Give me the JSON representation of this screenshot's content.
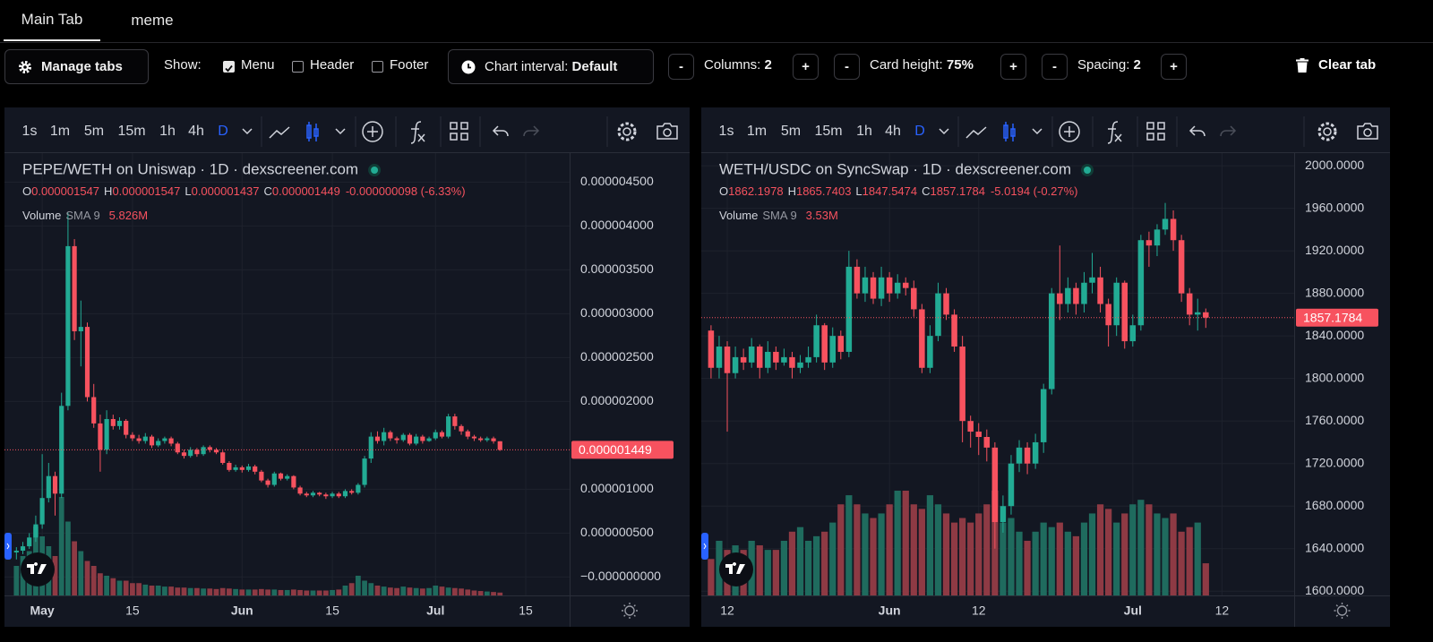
{
  "tabs": [
    {
      "label": "Main Tab",
      "active": true
    },
    {
      "label": "meme",
      "active": false
    }
  ],
  "toolbar": {
    "manage_tabs": "Manage tabs",
    "show": "Show:",
    "options": [
      {
        "label": "Menu",
        "checked": true
      },
      {
        "label": "Header",
        "checked": false
      },
      {
        "label": "Footer",
        "checked": false
      }
    ],
    "chart_interval": {
      "label": "Chart interval:",
      "value": "Default"
    },
    "minus": "-",
    "plus": "+",
    "steppers": [
      {
        "label": "Columns:",
        "value": "2"
      },
      {
        "label": "Card height:",
        "value": "75%"
      },
      {
        "label": "Spacing:",
        "value": "2"
      }
    ],
    "clear_tab": "Clear tab"
  },
  "charts": [
    {
      "type": "candlestick",
      "title": "PEPE/WETH on Uniswap · 1D · dexscreener.com",
      "intervals": [
        "1s",
        "1m",
        "5m",
        "15m",
        "1h",
        "4h",
        "D"
      ],
      "active_interval": "D",
      "ohlc": [
        {
          "label": "O",
          "value": "0.000001547"
        },
        {
          "label": "H",
          "value": "0.000001547"
        },
        {
          "label": "L",
          "value": "0.000001437"
        },
        {
          "label": "C",
          "value": "0.000001449"
        }
      ],
      "change": "-0.000000098 (-6.33%)",
      "volume_label": "Volume",
      "sma_label": "SMA 9",
      "volume_value": "5.826M",
      "up_color": "#22ab94",
      "down_color": "#f7525f",
      "volume_up_color": "#1f6b5e",
      "volume_down_color": "#8e3a44",
      "grid": true,
      "last_price": {
        "value": 1.449e-06,
        "label": "0.000001449"
      },
      "ylim": [
        -2.1e-07,
        4.82e-06
      ],
      "yticks": [
        {
          "value": 4.5e-06,
          "label": "0.000004500"
        },
        {
          "value": 4e-06,
          "label": "0.000004000"
        },
        {
          "value": 3.5e-06,
          "label": "0.000003500"
        },
        {
          "value": 3e-06,
          "label": "0.000003000"
        },
        {
          "value": 2.5e-06,
          "label": "0.000002500"
        },
        {
          "value": 2e-06,
          "label": "0.000002000"
        },
        {
          "value": 1e-06,
          "label": "0.000001000"
        },
        {
          "value": 5e-07,
          "label": "0.000000500"
        },
        {
          "value": 0,
          "label": "−0.000000000"
        }
      ],
      "xlim": [
        -4.6,
        81.8
      ],
      "xticks": [
        {
          "value": 0,
          "label": "May"
        },
        {
          "value": 14,
          "label": "15"
        },
        {
          "value": 31,
          "label": "Jun"
        },
        {
          "value": 45,
          "label": "15"
        },
        {
          "value": 61,
          "label": "Jul"
        },
        {
          "value": 75,
          "label": "15"
        }
      ],
      "x": [
        -4,
        -3,
        -2,
        -1,
        0,
        1,
        2,
        3,
        4,
        5,
        6,
        7,
        8,
        9,
        10,
        11,
        12,
        13,
        14,
        15,
        16,
        17,
        18,
        19,
        20,
        21,
        22,
        23,
        24,
        25,
        26,
        27,
        28,
        29,
        30,
        31,
        32,
        33,
        34,
        35,
        36,
        37,
        38,
        39,
        40,
        41,
        42,
        43,
        44,
        45,
        46,
        47,
        48,
        49,
        50,
        51,
        52,
        53,
        54,
        55,
        56,
        57,
        58,
        59,
        60,
        61,
        62,
        63,
        64,
        65,
        66,
        67,
        68,
        69,
        70,
        71
      ],
      "open": [
        2.8e-07,
        3e-07,
        3.5e-07,
        4.5e-07,
        6e-07,
        9e-07,
        1.15e-06,
        9.5e-07,
        1.95e-06,
        3.77e-06,
        2.8e-06,
        2.85e-06,
        2.05e-06,
        1.75e-06,
        1.45e-06,
        1.8e-06,
        1.72e-06,
        1.78e-06,
        1.62e-06,
        1.58e-06,
        1.55e-06,
        1.6e-06,
        1.5e-06,
        1.55e-06,
        1.58e-06,
        1.52e-06,
        1.42e-06,
        1.38e-06,
        1.45e-06,
        1.4e-06,
        1.48e-06,
        1.45e-06,
        1.42e-06,
        1.3e-06,
        1.22e-06,
        1.25e-06,
        1.22e-06,
        1.26e-06,
        1.2e-06,
        1.1e-06,
        1.05e-06,
        1.18e-06,
        1.12e-06,
        1.15e-06,
        1.02e-06,
        9.5e-07,
        9.3e-07,
        9.6e-07,
        9.4e-07,
        9.2e-07,
        9.5e-07,
        9.2e-07,
        9.8e-07,
        9.6e-07,
        1.05e-06,
        1.35e-06,
        1.6e-06,
        1.55e-06,
        1.65e-06,
        1.58e-06,
        1.56e-06,
        1.62e-06,
        1.52e-06,
        1.6e-06,
        1.55e-06,
        1.58e-06,
        1.65e-06,
        1.6e-06,
        1.83e-06,
        1.72e-06,
        1.66e-06,
        1.6e-06,
        1.58e-06,
        1.56e-06,
        1.58e-06,
        1.547e-06
      ],
      "high": [
        3.4e-07,
        4e-07,
        5e-07,
        7e-07,
        1.4e-06,
        1.3e-06,
        1.2e-06,
        2.1e-06,
        4.15e-06,
        3.85e-06,
        3.15e-06,
        2.9e-06,
        2.2e-06,
        1.85e-06,
        1.9e-06,
        1.85e-06,
        1.82e-06,
        1.8e-06,
        1.65e-06,
        1.62e-06,
        1.64e-06,
        1.62e-06,
        1.58e-06,
        1.6e-06,
        1.6e-06,
        1.54e-06,
        1.45e-06,
        1.48e-06,
        1.47e-06,
        1.5e-06,
        1.5e-06,
        1.47e-06,
        1.44e-06,
        1.32e-06,
        1.28e-06,
        1.27e-06,
        1.29e-06,
        1.28e-06,
        1.22e-06,
        1.12e-06,
        1.2e-06,
        1.19e-06,
        1.17e-06,
        1.16e-06,
        1.04e-06,
        9.7e-07,
        9.8e-07,
        9.7e-07,
        9.6e-07,
        9.7e-07,
        9.7e-07,
        1e-06,
        1e-06,
        1.07e-06,
        1.38e-06,
        1.65e-06,
        1.66e-06,
        1.7e-06,
        1.67e-06,
        1.6e-06,
        1.64e-06,
        1.64e-06,
        1.63e-06,
        1.62e-06,
        1.6e-06,
        1.68e-06,
        1.67e-06,
        1.86e-06,
        1.86e-06,
        1.74e-06,
        1.68e-06,
        1.62e-06,
        1.6e-06,
        1.6e-06,
        1.6e-06,
        1.547e-06
      ],
      "low": [
        2e-07,
        2.6e-07,
        3.2e-07,
        4e-07,
        5.5e-07,
        8.5e-07,
        7e-07,
        9e-07,
        1.9e-06,
        2.7e-06,
        2.4e-06,
        2e-06,
        1.7e-06,
        1.2e-06,
        1.4e-06,
        1.68e-06,
        1.68e-06,
        1.58e-06,
        1.55e-06,
        1.52e-06,
        1.52e-06,
        1.47e-06,
        1.48e-06,
        1.52e-06,
        1.49e-06,
        1.4e-06,
        1.35e-06,
        1.36e-06,
        1.37e-06,
        1.38e-06,
        1.42e-06,
        1.4e-06,
        1.28e-06,
        1.2e-06,
        1.2e-06,
        1.19e-06,
        1.2e-06,
        1.17e-06,
        1.08e-06,
        1.02e-06,
        1.03e-06,
        1.1e-06,
        1.1e-06,
        1e-06,
        9.3e-07,
        9.1e-07,
        9.1e-07,
        9.2e-07,
        8.9e-07,
        9e-07,
        9e-07,
        9e-07,
        9.4e-07,
        9.4e-07,
        1.02e-06,
        1.3e-06,
        1.52e-06,
        1.5e-06,
        1.55e-06,
        1.52e-06,
        1.54e-06,
        1.5e-06,
        1.5e-06,
        1.52e-06,
        1.54e-06,
        1.56e-06,
        1.58e-06,
        1.58e-06,
        1.68e-06,
        1.62e-06,
        1.57e-06,
        1.55e-06,
        1.54e-06,
        1.54e-06,
        1.52e-06,
        1.437e-06
      ],
      "close": [
        3e-07,
        3.5e-07,
        4.5e-07,
        6e-07,
        9e-07,
        1.15e-06,
        9.5e-07,
        1.95e-06,
        3.77e-06,
        2.8e-06,
        2.85e-06,
        2.05e-06,
        1.75e-06,
        1.45e-06,
        1.8e-06,
        1.72e-06,
        1.78e-06,
        1.62e-06,
        1.58e-06,
        1.55e-06,
        1.6e-06,
        1.5e-06,
        1.55e-06,
        1.58e-06,
        1.52e-06,
        1.42e-06,
        1.38e-06,
        1.45e-06,
        1.4e-06,
        1.48e-06,
        1.45e-06,
        1.42e-06,
        1.3e-06,
        1.22e-06,
        1.25e-06,
        1.22e-06,
        1.26e-06,
        1.2e-06,
        1.1e-06,
        1.05e-06,
        1.18e-06,
        1.12e-06,
        1.15e-06,
        1.02e-06,
        9.5e-07,
        9.3e-07,
        9.6e-07,
        9.4e-07,
        9.2e-07,
        9.5e-07,
        9.2e-07,
        9.8e-07,
        9.6e-07,
        1.05e-06,
        1.35e-06,
        1.6e-06,
        1.55e-06,
        1.65e-06,
        1.58e-06,
        1.56e-06,
        1.62e-06,
        1.52e-06,
        1.6e-06,
        1.55e-06,
        1.58e-06,
        1.65e-06,
        1.6e-06,
        1.83e-06,
        1.72e-06,
        1.66e-06,
        1.6e-06,
        1.58e-06,
        1.56e-06,
        1.58e-06,
        1.547e-06,
        1.449e-06
      ],
      "volume": [
        60,
        80,
        90,
        140,
        120,
        100,
        80,
        200,
        150,
        110,
        90,
        70,
        60,
        45,
        40,
        35,
        30,
        30,
        25,
        25,
        22,
        20,
        20,
        18,
        18,
        16,
        16,
        15,
        15,
        14,
        14,
        13,
        15,
        14,
        13,
        12,
        12,
        12,
        13,
        12,
        12,
        11,
        11,
        12,
        11,
        10,
        10,
        10,
        10,
        11,
        12,
        20,
        25,
        40,
        30,
        25,
        20,
        18,
        16,
        15,
        18,
        16,
        15,
        14,
        15,
        20,
        18,
        16,
        15,
        14,
        12,
        10,
        9,
        8,
        7,
        5.826
      ]
    },
    {
      "type": "candlestick",
      "title": "WETH/USDC on SyncSwap · 1D · dexscreener.com",
      "intervals": [
        "1s",
        "1m",
        "5m",
        "15m",
        "1h",
        "4h",
        "D"
      ],
      "active_interval": "D",
      "ohlc": [
        {
          "label": "O",
          "value": "1862.1978"
        },
        {
          "label": "H",
          "value": "1865.7403"
        },
        {
          "label": "L",
          "value": "1847.5474"
        },
        {
          "label": "C",
          "value": "1857.1784"
        }
      ],
      "change": "-5.0194 (-0.27%)",
      "volume_label": "Volume",
      "sma_label": "SMA 9",
      "volume_value": "3.53M",
      "up_color": "#22ab94",
      "down_color": "#f7525f",
      "volume_up_color": "#1f6b5e",
      "volume_down_color": "#8e3a44",
      "grid": true,
      "last_price": {
        "value": 1857.1784,
        "label": "1857.1784"
      },
      "ylim": [
        1596,
        2011
      ],
      "yticks": [
        {
          "value": 2000,
          "label": "2000.0000"
        },
        {
          "value": 1960,
          "label": "1960.0000"
        },
        {
          "value": 1920,
          "label": "1920.0000"
        },
        {
          "value": 1880,
          "label": "1880.0000"
        },
        {
          "value": 1840,
          "label": "1840.0000"
        },
        {
          "value": 1800,
          "label": "1800.0000"
        },
        {
          "value": 1760,
          "label": "1760.0000"
        },
        {
          "value": 1720,
          "label": "1720.0000"
        },
        {
          "value": 1680,
          "label": "1680.0000"
        },
        {
          "value": 1640,
          "label": "1640.0000"
        },
        {
          "value": 1600,
          "label": "1600.0000"
        }
      ],
      "xlim": [
        -22.1,
        49.9
      ],
      "xticks": [
        {
          "value": -20,
          "label": "12"
        },
        {
          "value": 0,
          "label": "Jun"
        },
        {
          "value": 11,
          "label": "12"
        },
        {
          "value": 30,
          "label": "Jul"
        },
        {
          "value": 41,
          "label": "12"
        }
      ],
      "x": [
        -22,
        -21,
        -20,
        -19,
        -18,
        -17,
        -16,
        -15,
        -14,
        -13,
        -12,
        -11,
        -10,
        -9,
        -8,
        -7,
        -6,
        -5,
        -4,
        -3,
        -2,
        -1,
        0,
        1,
        2,
        3,
        4,
        5,
        6,
        7,
        8,
        9,
        10,
        11,
        12,
        13,
        14,
        15,
        16,
        17,
        18,
        19,
        20,
        21,
        22,
        23,
        24,
        25,
        26,
        27,
        28,
        29,
        30,
        31,
        32,
        33,
        34,
        35,
        36,
        37,
        38,
        39
      ],
      "open": [
        1845,
        1810,
        1830,
        1805,
        1820,
        1815,
        1830,
        1810,
        1825,
        1815,
        1820,
        1810,
        1815,
        1820,
        1850,
        1815,
        1840,
        1825,
        1905,
        1880,
        1895,
        1875,
        1895,
        1880,
        1890,
        1885,
        1865,
        1810,
        1840,
        1880,
        1860,
        1830,
        1760,
        1750,
        1745,
        1735,
        1665,
        1680,
        1720,
        1735,
        1720,
        1740,
        1790,
        1880,
        1870,
        1885,
        1870,
        1890,
        1895,
        1870,
        1850,
        1890,
        1835,
        1850,
        1930,
        1925,
        1940,
        1950,
        1930,
        1880,
        1860,
        1862.1978
      ],
      "high": [
        1850,
        1840,
        1835,
        1830,
        1828,
        1838,
        1832,
        1835,
        1830,
        1828,
        1825,
        1822,
        1830,
        1860,
        1852,
        1848,
        1845,
        1920,
        1912,
        1905,
        1900,
        1905,
        1900,
        1898,
        1895,
        1892,
        1870,
        1850,
        1890,
        1885,
        1865,
        1840,
        1765,
        1758,
        1752,
        1740,
        1690,
        1728,
        1742,
        1740,
        1748,
        1795,
        1885,
        1925,
        1895,
        1890,
        1900,
        1918,
        1905,
        1875,
        1895,
        1892,
        1860,
        1935,
        1938,
        1945,
        1965,
        1958,
        1935,
        1885,
        1875,
        1865.7403
      ],
      "low": [
        1800,
        1800,
        1750,
        1800,
        1808,
        1810,
        1800,
        1805,
        1808,
        1812,
        1800,
        1805,
        1810,
        1815,
        1808,
        1810,
        1818,
        1820,
        1875,
        1872,
        1870,
        1868,
        1872,
        1875,
        1878,
        1858,
        1805,
        1805,
        1835,
        1855,
        1825,
        1740,
        1735,
        1728,
        1722,
        1640,
        1655,
        1672,
        1712,
        1710,
        1715,
        1730,
        1785,
        1855,
        1862,
        1860,
        1862,
        1880,
        1862,
        1830,
        1840,
        1828,
        1830,
        1845,
        1905,
        1915,
        1935,
        1920,
        1872,
        1850,
        1845,
        1847.5474
      ],
      "close": [
        1810,
        1830,
        1805,
        1820,
        1815,
        1830,
        1810,
        1825,
        1815,
        1820,
        1810,
        1815,
        1820,
        1850,
        1815,
        1840,
        1825,
        1905,
        1880,
        1895,
        1875,
        1895,
        1880,
        1890,
        1885,
        1865,
        1810,
        1840,
        1880,
        1860,
        1830,
        1760,
        1750,
        1745,
        1735,
        1665,
        1680,
        1720,
        1735,
        1720,
        1740,
        1790,
        1880,
        1870,
        1885,
        1870,
        1890,
        1895,
        1870,
        1850,
        1890,
        1835,
        1850,
        1930,
        1925,
        1940,
        1950,
        1930,
        1880,
        1860,
        1862.1978,
        1857.1784
      ],
      "volume": [
        4,
        6,
        5,
        5.5,
        5,
        6,
        5.5,
        5,
        5,
        6,
        7,
        7.5,
        6,
        6.5,
        7,
        8,
        10,
        11,
        10,
        9,
        8.5,
        9,
        10,
        11.5,
        11.5,
        10,
        9.5,
        11,
        10,
        9,
        8,
        8.5,
        8,
        9,
        10,
        11.5,
        8,
        8.5,
        7,
        6,
        7,
        8,
        7.5,
        8,
        7,
        6.5,
        8,
        9,
        10,
        9.5,
        8,
        9,
        10,
        10.5,
        10,
        9,
        8.5,
        9,
        7,
        7.5,
        8,
        3.53
      ]
    }
  ]
}
